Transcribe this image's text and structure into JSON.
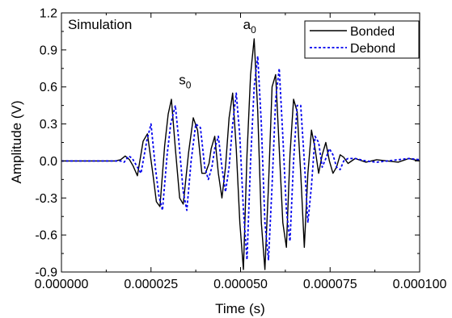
{
  "chart_data": {
    "type": "line",
    "xlabel": "Time (s)",
    "ylabel": "Amplitude (V)",
    "xlim": [
      0,
      0.0001
    ],
    "ylim": [
      -0.9,
      1.2
    ],
    "xticks": [
      0,
      2.5e-05,
      5e-05,
      7.5e-05,
      0.0001
    ],
    "xtick_labels": [
      "0.000000",
      "0.000025",
      "0.000050",
      "0.000075",
      "0.000100"
    ],
    "yticks": [
      -0.9,
      -0.6,
      -0.3,
      0.0,
      0.3,
      0.6,
      0.9,
      1.2
    ],
    "ytick_labels": [
      "-0.9",
      "-0.6",
      "-0.3",
      "0.0",
      "0.3",
      "0.6",
      "0.9",
      "1.2"
    ],
    "grid": false,
    "legend_position": "top-right",
    "annotations": [
      {
        "text": "Simulation",
        "sub": "",
        "x": 1.8e-06,
        "y": 1.07
      },
      {
        "text": "s",
        "sub": "0",
        "x": 3.28e-05,
        "y": 0.62
      },
      {
        "text": "a",
        "sub": "0",
        "x": 5.07e-05,
        "y": 1.07
      }
    ],
    "series": [
      {
        "name": "Bonded",
        "color": "#000000",
        "dash": "solid",
        "points": [
          [
            0,
            0
          ],
          [
            1.5e-05,
            0
          ],
          [
            1.65e-05,
            0.01
          ],
          [
            1.78e-05,
            0.04
          ],
          [
            1.9e-05,
            0.01
          ],
          [
            2e-05,
            -0.04
          ],
          [
            2.12e-05,
            -0.12
          ],
          [
            2.28e-05,
            0.16
          ],
          [
            2.4e-05,
            0.22
          ],
          [
            2.55e-05,
            -0.1
          ],
          [
            2.65e-05,
            -0.33
          ],
          [
            2.75e-05,
            -0.37
          ],
          [
            2.88e-05,
            0.12
          ],
          [
            2.98e-05,
            0.38
          ],
          [
            3.07e-05,
            0.5
          ],
          [
            3.18e-05,
            0.1
          ],
          [
            3.3e-05,
            -0.3
          ],
          [
            3.4e-05,
            -0.35
          ],
          [
            3.55e-05,
            0.07
          ],
          [
            3.68e-05,
            0.35
          ],
          [
            3.8e-05,
            0.25
          ],
          [
            3.92e-05,
            -0.1
          ],
          [
            4.02e-05,
            -0.1
          ],
          [
            4.12e-05,
            -0.02
          ],
          [
            4.18e-05,
            0.1
          ],
          [
            4.28e-05,
            0.2
          ],
          [
            4.38e-05,
            -0.1
          ],
          [
            4.48e-05,
            -0.3
          ],
          [
            4.58e-05,
            -0.05
          ],
          [
            4.68e-05,
            0.35
          ],
          [
            4.78e-05,
            0.55
          ],
          [
            4.88e-05,
            0.1
          ],
          [
            4.98e-05,
            -0.5
          ],
          [
            5.08e-05,
            -0.88
          ],
          [
            5.18e-05,
            0.05
          ],
          [
            5.28e-05,
            0.7
          ],
          [
            5.38e-05,
            0.99
          ],
          [
            5.48e-05,
            0.4
          ],
          [
            5.58e-05,
            -0.5
          ],
          [
            5.68e-05,
            -0.88
          ],
          [
            5.78e-05,
            -0.2
          ],
          [
            5.88e-05,
            0.6
          ],
          [
            5.98e-05,
            0.7
          ],
          [
            6.08e-05,
            0.1
          ],
          [
            6.18e-05,
            -0.5
          ],
          [
            6.28e-05,
            -0.7
          ],
          [
            6.38e-05,
            0.05
          ],
          [
            6.48e-05,
            0.5
          ],
          [
            6.58e-05,
            0.4
          ],
          [
            6.68e-05,
            -0.1
          ],
          [
            6.78e-05,
            -0.7
          ],
          [
            6.88e-05,
            -0.1
          ],
          [
            6.98e-05,
            0.25
          ],
          [
            7.08e-05,
            0.1
          ],
          [
            7.18e-05,
            -0.1
          ],
          [
            7.28e-05,
            0.05
          ],
          [
            7.38e-05,
            0.15
          ],
          [
            7.48e-05,
            0
          ],
          [
            7.58e-05,
            -0.1
          ],
          [
            7.68e-05,
            -0.05
          ],
          [
            7.78e-05,
            0.05
          ],
          [
            7.88e-05,
            0.03
          ],
          [
            8e-05,
            -0.02
          ],
          [
            8.2e-05,
            0.02
          ],
          [
            8.5e-05,
            -0.01
          ],
          [
            8.8e-05,
            0.01
          ],
          [
            9.1e-05,
            0
          ],
          [
            9.4e-05,
            -0.01
          ],
          [
            9.7e-05,
            0.02
          ],
          [
            0.0001,
            0
          ]
        ]
      },
      {
        "name": "Debond",
        "color": "#0000ee",
        "dash": "3,2.5",
        "points": [
          [
            0,
            0
          ],
          [
            1.65e-05,
            0
          ],
          [
            1.75e-05,
            -0.01
          ],
          [
            1.88e-05,
            0.04
          ],
          [
            1.98e-05,
            0.02
          ],
          [
            2.08e-05,
            -0.03
          ],
          [
            2.22e-05,
            -0.1
          ],
          [
            2.38e-05,
            0.16
          ],
          [
            2.5e-05,
            0.3
          ],
          [
            2.62e-05,
            -0.05
          ],
          [
            2.72e-05,
            -0.28
          ],
          [
            2.82e-05,
            -0.4
          ],
          [
            2.95e-05,
            0.05
          ],
          [
            3.05e-05,
            0.3
          ],
          [
            3.18e-05,
            0.45
          ],
          [
            3.28e-05,
            0.15
          ],
          [
            3.4e-05,
            -0.25
          ],
          [
            3.5e-05,
            -0.4
          ],
          [
            3.62e-05,
            0
          ],
          [
            3.75e-05,
            0.3
          ],
          [
            3.88e-05,
            0.27
          ],
          [
            4e-05,
            -0.05
          ],
          [
            4.1e-05,
            -0.15
          ],
          [
            4.2e-05,
            -0.05
          ],
          [
            4.28e-05,
            0.1
          ],
          [
            4.38e-05,
            0.2
          ],
          [
            4.48e-05,
            -0.05
          ],
          [
            4.58e-05,
            -0.25
          ],
          [
            4.68e-05,
            -0.05
          ],
          [
            4.78e-05,
            0.3
          ],
          [
            4.88e-05,
            0.55
          ],
          [
            4.98e-05,
            0.2
          ],
          [
            5.08e-05,
            -0.4
          ],
          [
            5.18e-05,
            -0.8
          ],
          [
            5.28e-05,
            0
          ],
          [
            5.38e-05,
            0.6
          ],
          [
            5.48e-05,
            0.85
          ],
          [
            5.58e-05,
            0.3
          ],
          [
            5.68e-05,
            -0.5
          ],
          [
            5.78e-05,
            -0.8
          ],
          [
            5.88e-05,
            -0.2
          ],
          [
            5.98e-05,
            0.5
          ],
          [
            6.08e-05,
            0.75
          ],
          [
            6.18e-05,
            0.2
          ],
          [
            6.28e-05,
            -0.4
          ],
          [
            6.38e-05,
            -0.65
          ],
          [
            6.48e-05,
            0
          ],
          [
            6.58e-05,
            0.45
          ],
          [
            6.68e-05,
            0.45
          ],
          [
            6.78e-05,
            0
          ],
          [
            6.88e-05,
            -0.5
          ],
          [
            6.98e-05,
            -0.2
          ],
          [
            7.08e-05,
            0.2
          ],
          [
            7.18e-05,
            0.15
          ],
          [
            7.28e-05,
            -0.05
          ],
          [
            7.38e-05,
            0.02
          ],
          [
            7.48e-05,
            0.1
          ],
          [
            7.58e-05,
            0.05
          ],
          [
            7.68e-05,
            -0.05
          ],
          [
            7.78e-05,
            -0.07
          ],
          [
            7.88e-05,
            0
          ],
          [
            8e-05,
            0.02
          ],
          [
            8.2e-05,
            0.02
          ],
          [
            8.5e-05,
            0
          ],
          [
            8.8e-05,
            -0.01
          ],
          [
            9.1e-05,
            0
          ],
          [
            9.4e-05,
            0.01
          ],
          [
            9.7e-05,
            0.02
          ],
          [
            0.0001,
            0.01
          ]
        ]
      }
    ]
  }
}
